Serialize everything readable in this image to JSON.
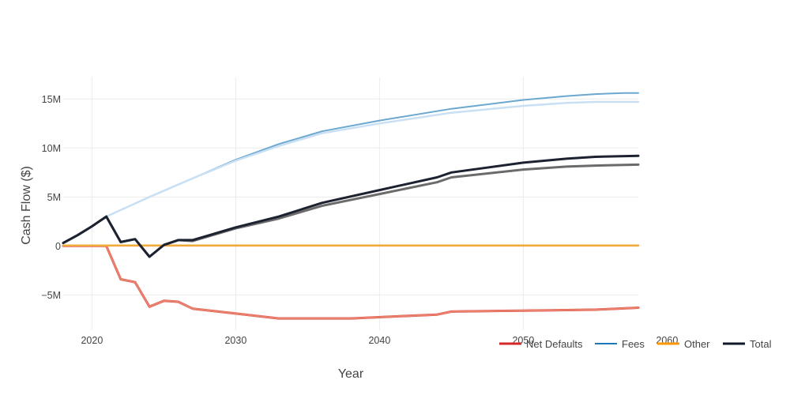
{
  "chart_data": {
    "type": "line",
    "title": "",
    "xlabel": "Year",
    "ylabel": "Cash Flow ($)",
    "xlim": [
      2018,
      2058
    ],
    "ylim": [
      -8.6,
      17.2
    ],
    "x_ticks": [
      2020,
      2030,
      2040,
      2050,
      2060
    ],
    "x_tick_labels": [
      "2020",
      "2030",
      "2040",
      "2050",
      "2060"
    ],
    "y_ticks": [
      -5,
      0,
      5,
      10,
      15
    ],
    "y_tick_labels": [
      "−5M",
      "0",
      "5M",
      "10M",
      "15M"
    ],
    "y_unit": "millions of dollars",
    "grid": true,
    "legend_position": "bottom-right",
    "legend": [
      "Net Defaults",
      "Fees",
      "Other",
      "Total"
    ],
    "legend_colors": [
      "#d62728",
      "#1f77b4",
      "#ff9800",
      "#111827"
    ],
    "series": [
      {
        "name": "Net Defaults",
        "color": "#d62728",
        "x": [
          2018,
          2019,
          2020,
          2021,
          2022,
          2023,
          2024,
          2025,
          2026,
          2027,
          2030,
          2033,
          2035,
          2038,
          2041,
          2044,
          2045,
          2050,
          2055,
          2058
        ],
        "values": [
          0,
          0,
          0,
          0,
          -3.4,
          -3.7,
          -6.2,
          -5.6,
          -5.7,
          -6.4,
          -6.9,
          -7.4,
          -7.4,
          -7.4,
          -7.2,
          -7.0,
          -6.7,
          -6.6,
          -6.5,
          -6.3
        ]
      },
      {
        "name": "Net Defaults (variant)",
        "color": "#e8806b",
        "x": [
          2018,
          2019,
          2020,
          2021,
          2022,
          2023,
          2024,
          2025,
          2026,
          2027,
          2030,
          2033,
          2035,
          2038,
          2041,
          2044,
          2045,
          2050,
          2055,
          2058
        ],
        "values": [
          0,
          0,
          0,
          0,
          -3.4,
          -3.7,
          -6.2,
          -5.6,
          -5.7,
          -6.4,
          -6.9,
          -7.4,
          -7.4,
          -7.4,
          -7.2,
          -7.0,
          -6.7,
          -6.6,
          -6.5,
          -6.3
        ]
      },
      {
        "name": "Fees",
        "color": "#6ba8cf",
        "x": [
          2018,
          2019,
          2020,
          2021,
          2024,
          2027,
          2030,
          2033,
          2036,
          2040,
          2045,
          2050,
          2053,
          2055,
          2057,
          2058
        ],
        "values": [
          0.3,
          1.1,
          2.0,
          3.0,
          5.0,
          6.9,
          8.8,
          10.4,
          11.7,
          12.8,
          14.0,
          14.9,
          15.3,
          15.5,
          15.6,
          15.6
        ]
      },
      {
        "name": "Fees (variant)",
        "color": "#c9e0f4",
        "x": [
          2018,
          2019,
          2020,
          2021,
          2024,
          2027,
          2030,
          2033,
          2036,
          2040,
          2045,
          2050,
          2053,
          2055,
          2057,
          2058
        ],
        "values": [
          0.3,
          1.1,
          2.0,
          3.0,
          5.0,
          6.9,
          8.7,
          10.2,
          11.5,
          12.5,
          13.6,
          14.3,
          14.6,
          14.7,
          14.7,
          14.7
        ]
      },
      {
        "name": "Other",
        "color": "#f2a93b",
        "x": [
          2018,
          2058
        ],
        "values": [
          0.05,
          0.05
        ]
      },
      {
        "name": "Total (variant)",
        "color": "#6b6b6b",
        "x": [
          2018,
          2019,
          2020,
          2021,
          2022,
          2023,
          2024,
          2025,
          2026,
          2027,
          2030,
          2033,
          2036,
          2040,
          2044,
          2045,
          2050,
          2053,
          2055,
          2058
        ],
        "values": [
          0.3,
          1.1,
          2.0,
          3.0,
          0.4,
          0.7,
          -1.1,
          0.1,
          0.6,
          0.5,
          1.8,
          2.8,
          4.1,
          5.3,
          6.5,
          7.0,
          7.8,
          8.1,
          8.2,
          8.3
        ]
      },
      {
        "name": "Total",
        "color": "#1c2230",
        "x": [
          2018,
          2019,
          2020,
          2021,
          2022,
          2023,
          2024,
          2025,
          2026,
          2027,
          2030,
          2033,
          2036,
          2040,
          2044,
          2045,
          2050,
          2053,
          2055,
          2058
        ],
        "values": [
          0.3,
          1.1,
          2.0,
          3.0,
          0.4,
          0.7,
          -1.1,
          0.1,
          0.6,
          0.6,
          1.9,
          3.0,
          4.4,
          5.7,
          7.0,
          7.5,
          8.5,
          8.9,
          9.1,
          9.2
        ]
      }
    ]
  }
}
